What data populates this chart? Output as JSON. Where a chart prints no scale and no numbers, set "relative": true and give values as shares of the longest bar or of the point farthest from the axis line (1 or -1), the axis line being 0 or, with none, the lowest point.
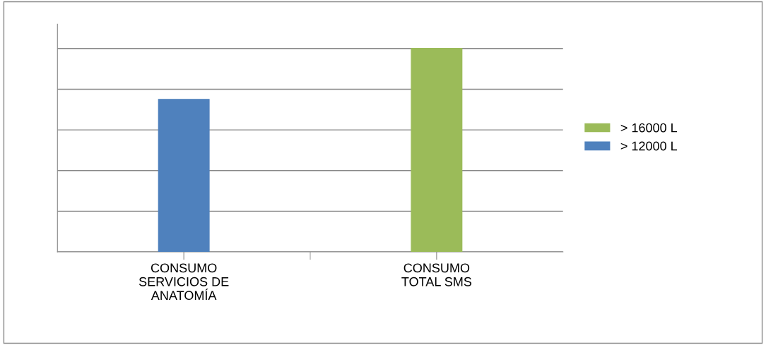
{
  "chart_data": {
    "type": "bar",
    "relative": true,
    "categories": [
      "CONSUMO\nSERVICIOS DE\nANATOMÍA",
      "CONSUMO\nTOTAL SMS"
    ],
    "series": [
      {
        "name": "> 16000 L",
        "color": "#9bbb59",
        "values": [
          null,
          1
        ]
      },
      {
        "name": "> 12000 L",
        "color": "#4f81bd",
        "values": [
          0.75,
          null
        ]
      }
    ],
    "grid": "y",
    "legend": "right",
    "tick_labels": "x"
  }
}
